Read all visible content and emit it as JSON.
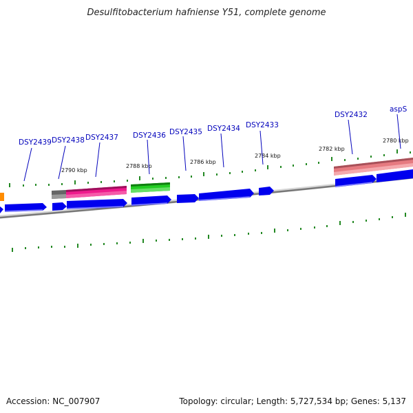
{
  "title": "Desulfitobacterium hafniense Y51, complete genome",
  "accession": "Accession: NC_007907",
  "summary": "Topology: circular; Length: 5,727,534 bp; Genes: 5,137",
  "kbp_labels": [
    "2790 kbp",
    "2788 kbp",
    "2786 kbp",
    "2784 kbp",
    "2782 kbp",
    "2780 kbp"
  ],
  "gene_labels": [
    "DSY2439",
    "DSY2438",
    "DSY2437",
    "DSY2436",
    "DSY2435",
    "DSY2434",
    "DSY2433",
    "DSY2432",
    "aspS"
  ],
  "colors": {
    "strand_blue": "#0000ee",
    "magenta": "#ee1a8c",
    "green": "#22cc22",
    "salmon": "#e67a80",
    "gray": "#666666",
    "orange": "#ff8c00",
    "tick_green": "#228822",
    "label_blue": "#0000bb"
  }
}
